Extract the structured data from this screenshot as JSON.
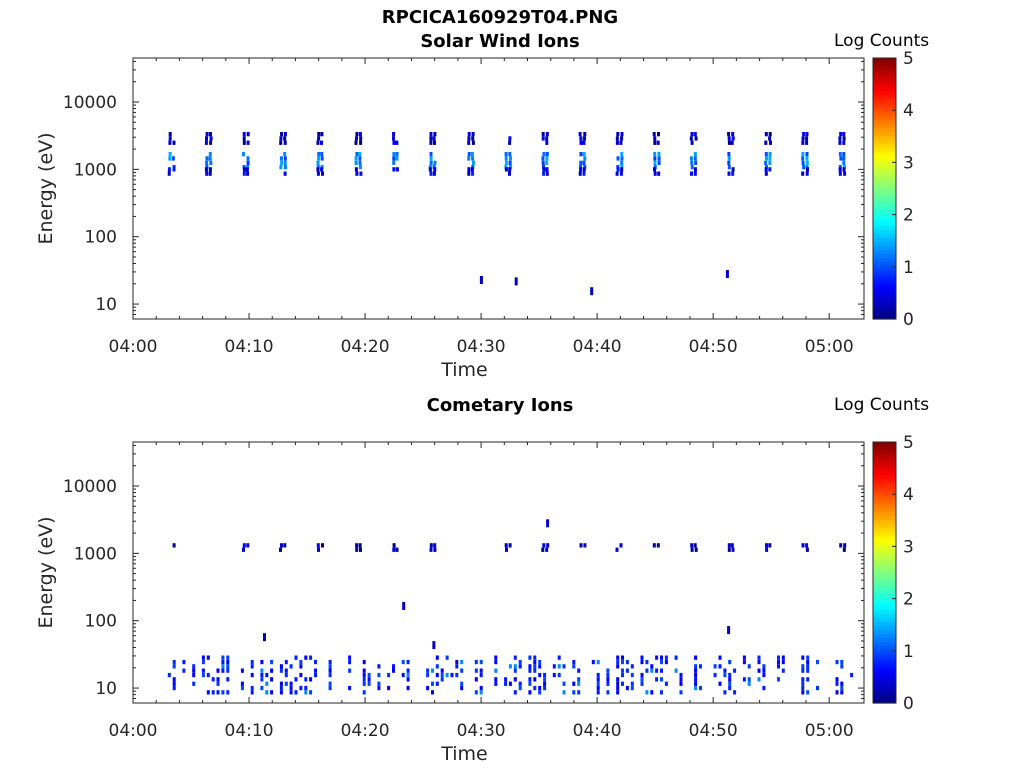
{
  "figure": {
    "title": "RPCICA160929T04.PNG"
  },
  "chart_data": [
    {
      "type": "heatmap",
      "title": "Solar Wind Ions",
      "xlabel": "Time",
      "ylabel": "Energy (eV)",
      "y_scale": "log",
      "ylim": [
        6,
        45000
      ],
      "xlim": [
        "04:00",
        "05:03"
      ],
      "x_ticks": [
        "04:00",
        "04:10",
        "04:20",
        "04:30",
        "04:40",
        "04:50",
        "05:00"
      ],
      "y_ticks": [
        "10",
        "100",
        "1000",
        "10000"
      ],
      "y_tick_values": [
        10,
        100,
        1000,
        10000
      ],
      "colorbar": {
        "label": "Log Counts",
        "range": [
          0,
          5
        ],
        "ticks": [
          "0",
          "1",
          "2",
          "3",
          "4",
          "5"
        ]
      },
      "grid": false,
      "scan_times_min": [
        3.2,
        6.4,
        9.6,
        12.8,
        16.0,
        19.3,
        22.5,
        25.7,
        29.0,
        32.2,
        35.4,
        38.6,
        41.8,
        45.0,
        48.2,
        51.4,
        54.6,
        57.8,
        61.0
      ],
      "blobs": [
        {
          "emin": 1000,
          "emax": 1600,
          "log_counts": 1.2
        },
        {
          "emin": 800,
          "emax": 1000,
          "log_counts": 0.5
        },
        {
          "emin": 2300,
          "emax": 3300,
          "log_counts": 0.3
        }
      ],
      "isolated_points": [
        {
          "t_min": 29.9,
          "energy": 22,
          "log_counts": 0.3
        },
        {
          "t_min": 32.9,
          "energy": 21,
          "log_counts": 0.3
        },
        {
          "t_min": 39.4,
          "energy": 15,
          "log_counts": 0.3
        },
        {
          "t_min": 51.1,
          "energy": 27,
          "log_counts": 0.3
        }
      ]
    },
    {
      "type": "heatmap",
      "title": "Cometary Ions",
      "xlabel": "Time",
      "ylabel": "Energy (eV)",
      "y_scale": "log",
      "ylim": [
        6,
        45000
      ],
      "xlim": [
        "04:00",
        "05:03"
      ],
      "x_ticks": [
        "04:00",
        "04:10",
        "04:20",
        "04:30",
        "04:40",
        "04:50",
        "05:00"
      ],
      "y_ticks": [
        "10",
        "100",
        "1000",
        "10000"
      ],
      "y_tick_values": [
        10,
        100,
        1000,
        10000
      ],
      "colorbar": {
        "label": "Log Counts",
        "range": [
          0,
          5
        ],
        "ticks": [
          "0",
          "1",
          "2",
          "3",
          "4",
          "5"
        ]
      },
      "grid": false,
      "scan_times_min": [
        3.2,
        9.6,
        12.8,
        16.0,
        19.3,
        22.5,
        25.7,
        32.2,
        35.4,
        38.6,
        41.8,
        45.0,
        48.2,
        51.4,
        54.6,
        57.8,
        61.0
      ],
      "blobs": [
        {
          "emin": 1050,
          "emax": 1350,
          "log_counts": 0.3
        }
      ],
      "low_energy_band": {
        "emin": 8,
        "emax": 30,
        "log_counts": 0.5,
        "peak_log_counts": 1.3
      },
      "isolated_points": [
        {
          "t_min": 35.6,
          "energy": 2700,
          "log_counts": 0.3
        },
        {
          "t_min": 23.2,
          "energy": 160,
          "log_counts": 0.3
        },
        {
          "t_min": 11.2,
          "energy": 55,
          "log_counts": 0.3
        },
        {
          "t_min": 25.8,
          "energy": 42,
          "log_counts": 0.3
        },
        {
          "t_min": 51.2,
          "energy": 70,
          "log_counts": 0.3
        }
      ]
    }
  ]
}
